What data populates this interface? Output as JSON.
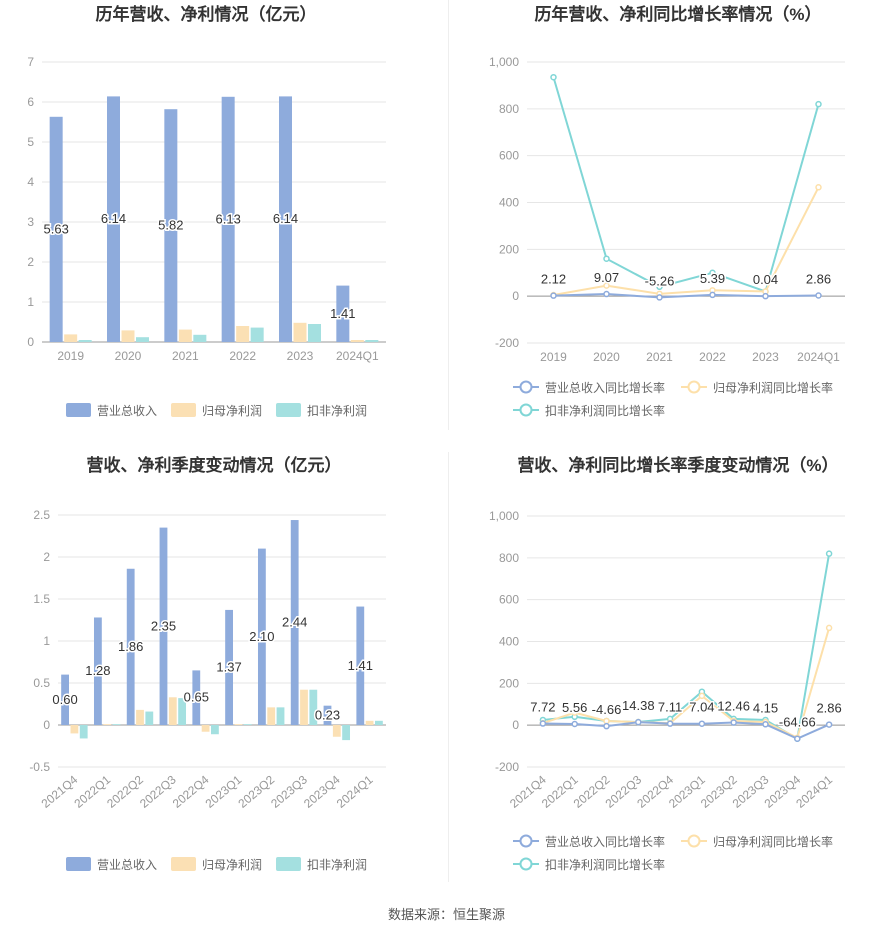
{
  "source": "数据来源：恒生聚源",
  "colors": {
    "revenue": "#8eabdc",
    "netprofit": "#fbe0b4",
    "deducted": "#a4e0e0",
    "revenue_line": "#8eabdc",
    "netprofit_line": "#fde0aa",
    "deducted_line": "#80d6d6"
  },
  "chart_data": [
    {
      "id": "annual-bar",
      "type": "bar",
      "title": "历年营收、净利情况（亿元）",
      "categories": [
        "2019",
        "2020",
        "2021",
        "2022",
        "2023",
        "2024Q1"
      ],
      "series": [
        {
          "name": "营业总收入",
          "values": [
            5.63,
            6.14,
            5.82,
            6.13,
            6.14,
            1.41
          ]
        },
        {
          "name": "归母净利润",
          "values": [
            0.19,
            0.29,
            0.31,
            0.4,
            0.48,
            0.05
          ]
        },
        {
          "name": "扣非净利润",
          "values": [
            0.05,
            0.12,
            0.18,
            0.36,
            0.45,
            0.05
          ]
        }
      ],
      "data_labels": [
        "5.63",
        "6.14",
        "5.82",
        "6.13",
        "6.14",
        "1.41"
      ],
      "ylim": [
        0,
        7
      ],
      "yticks": [
        "0",
        "1",
        "2",
        "3",
        "4",
        "5",
        "6",
        "7"
      ],
      "grid": true,
      "legend": "bottom"
    },
    {
      "id": "annual-line",
      "type": "line",
      "title": "历年营收、净利同比增长率情况（%）",
      "categories": [
        "2019",
        "2020",
        "2021",
        "2022",
        "2023",
        "2024Q1"
      ],
      "series": [
        {
          "name": "营业总收入同比增长率",
          "values": [
            2.12,
            9.07,
            -5.26,
            5.39,
            0.04,
            2.86
          ]
        },
        {
          "name": "归母净利润同比增长率",
          "values": [
            5,
            45,
            10,
            25,
            20,
            465
          ]
        },
        {
          "name": "扣非净利润同比增长率",
          "values": [
            935,
            160,
            40,
            100,
            20,
            820
          ]
        }
      ],
      "data_labels": [
        "2.12",
        "9.07",
        "-5.26",
        "5.39",
        "0.04",
        "2.86"
      ],
      "ylim": [
        -200,
        1000
      ],
      "yticks": [
        "-200",
        "0",
        "200",
        "400",
        "600",
        "800",
        "1,000"
      ],
      "grid": true,
      "legend": "bottom"
    },
    {
      "id": "quarter-bar",
      "type": "bar",
      "title": "营收、净利季度变动情况（亿元）",
      "categories": [
        "2021Q4",
        "2022Q1",
        "2022Q2",
        "2022Q3",
        "2022Q4",
        "2023Q1",
        "2023Q2",
        "2023Q3",
        "2023Q4",
        "2024Q1"
      ],
      "series": [
        {
          "name": "营业总收入",
          "values": [
            0.6,
            1.28,
            1.86,
            2.35,
            0.65,
            1.37,
            2.1,
            2.44,
            0.23,
            1.41
          ]
        },
        {
          "name": "归母净利润",
          "values": [
            -0.1,
            0.01,
            0.18,
            0.33,
            -0.08,
            0.01,
            0.21,
            0.42,
            -0.14,
            0.05
          ]
        },
        {
          "name": "扣非净利润",
          "values": [
            -0.16,
            0.01,
            0.16,
            0.32,
            -0.11,
            0.01,
            0.21,
            0.42,
            -0.18,
            0.05
          ]
        }
      ],
      "data_labels": [
        "0.60",
        "1.28",
        "1.86",
        "2.35",
        "0.65",
        "1.37",
        "2.10",
        "2.44",
        "0.23",
        "1.41"
      ],
      "ylim": [
        -0.5,
        2.5
      ],
      "yticks": [
        "-0.5",
        "0",
        "0.5",
        "1",
        "1.5",
        "2",
        "2.5"
      ],
      "grid": true,
      "legend": "bottom"
    },
    {
      "id": "quarter-line",
      "type": "line",
      "title": "营收、净利同比增长率季度变动情况（%）",
      "categories": [
        "2021Q4",
        "2022Q1",
        "2022Q2",
        "2022Q3",
        "2022Q4",
        "2023Q1",
        "2023Q2",
        "2023Q3",
        "2023Q4",
        "2024Q1"
      ],
      "series": [
        {
          "name": "营业总收入同比增长率",
          "values": [
            7.72,
            5.56,
            -4.66,
            14.38,
            7.11,
            7.04,
            12.46,
            4.15,
            -64.66,
            2.86
          ]
        },
        {
          "name": "归母净利润同比增长率",
          "values": [
            10,
            60,
            20,
            15,
            10,
            140,
            20,
            15,
            -60,
            465
          ]
        },
        {
          "name": "扣非净利润同比增长率",
          "values": [
            25,
            40,
            20,
            15,
            30,
            160,
            30,
            25,
            -65,
            820
          ]
        }
      ],
      "data_labels": [
        "7.72",
        "5.56",
        "-4.66",
        "14.38",
        "7.11",
        "7.04",
        "12.46",
        "4.15",
        "-64.66",
        "2.86"
      ],
      "ylim": [
        -200,
        1000
      ],
      "yticks": [
        "-200",
        "0",
        "200",
        "400",
        "600",
        "800",
        "1,000"
      ],
      "grid": true,
      "legend": "bottom"
    }
  ]
}
